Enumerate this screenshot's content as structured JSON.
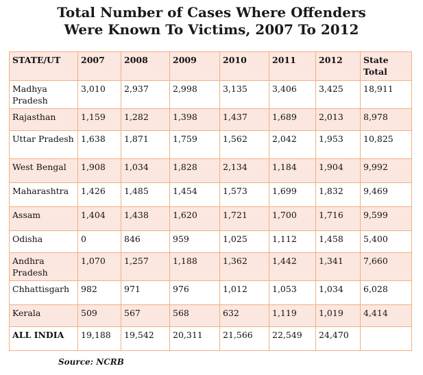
{
  "title": {
    "line1": "Total Number of Cases Where Offenders",
    "line2": "Were Known To Victims, 2007 To 2012"
  },
  "table": {
    "headers": [
      "STATE/UT",
      "2007",
      "2008",
      "2009",
      "2010",
      "2011",
      "2012",
      "State Total"
    ],
    "rows": [
      {
        "state": "Madhya Pradesh",
        "values": [
          "3,010",
          "2,937",
          "2,998",
          "3,135",
          "3,406",
          "3,425",
          "18,911"
        ]
      },
      {
        "state": "Rajasthan",
        "values": [
          "1,159",
          "1,282",
          "1,398",
          "1,437",
          "1,689",
          "2,013",
          "8,978"
        ]
      },
      {
        "state": "Uttar Pradesh",
        "values": [
          "1,638",
          "1,871",
          "1,759",
          "1,562",
          "2,042",
          "1,953",
          "10,825"
        ]
      },
      {
        "state": "West Bengal",
        "values": [
          "1,908",
          "1,034",
          "1,828",
          "2,134",
          "1,184",
          "1,904",
          "9,992"
        ]
      },
      {
        "state": "Maharashtra",
        "values": [
          "1,426",
          "1,485",
          "1,454",
          "1,573",
          "1,699",
          "1,832",
          "9,469"
        ]
      },
      {
        "state": "Assam",
        "values": [
          "1,404",
          "1,438",
          "1,620",
          "1,721",
          "1,700",
          "1,716",
          "9,599"
        ]
      },
      {
        "state": "Odisha",
        "values": [
          "0",
          "846",
          "959",
          "1,025",
          "1,112",
          "1,458",
          "5,400"
        ]
      },
      {
        "state": "Andhra Pradesh",
        "values": [
          "1,070",
          "1,257",
          "1,188",
          "1,362",
          "1,442",
          "1,341",
          "7,660"
        ]
      },
      {
        "state": "Chhattisgarh",
        "values": [
          "982",
          "971",
          "976",
          "1,012",
          "1,053",
          "1,034",
          "6,028"
        ]
      },
      {
        "state": "Kerala",
        "values": [
          "509",
          "567",
          "568",
          "632",
          "1,119",
          "1,019",
          "4,414"
        ]
      },
      {
        "state": "ALL INDIA",
        "values": [
          "19,188",
          "19,542",
          "20,311",
          "21,566",
          "22,549",
          "24,470",
          ""
        ]
      }
    ]
  },
  "source": "Source: NCRB",
  "colors": {
    "shade": "#fbe7df",
    "border": "#f0b080"
  }
}
